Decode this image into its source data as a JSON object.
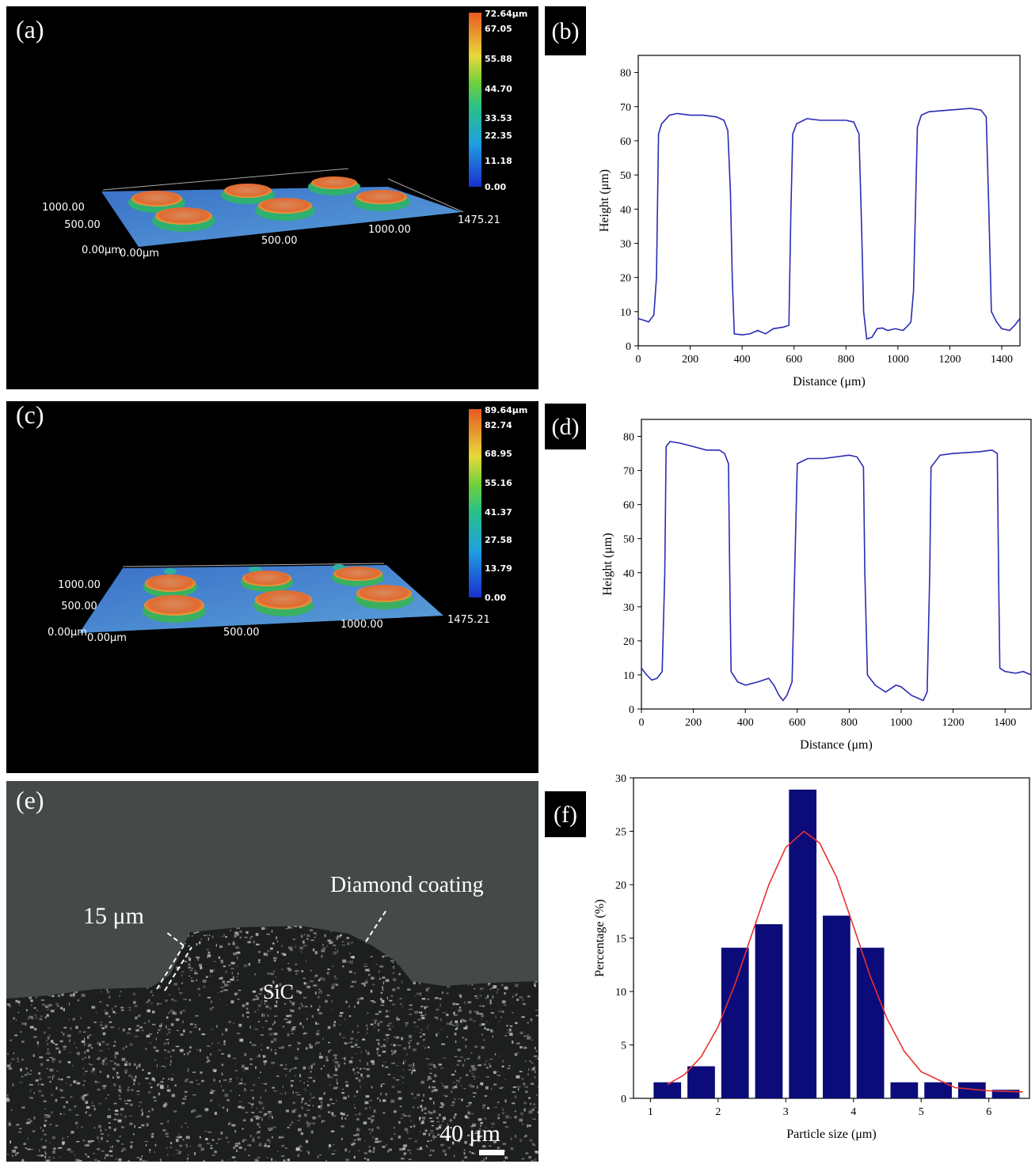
{
  "chart_data": [
    {
      "type": "line",
      "label": "(b)",
      "x_label": "Distance (μm)",
      "y_label": "Height (μm)",
      "x": [
        0,
        20,
        40,
        60,
        70,
        78,
        90,
        120,
        150,
        200,
        250,
        300,
        330,
        345,
        355,
        362,
        370,
        400,
        430,
        460,
        490,
        520,
        560,
        580,
        588,
        595,
        610,
        650,
        700,
        800,
        830,
        850,
        860,
        868,
        880,
        900,
        920,
        940,
        960,
        990,
        1020,
        1040,
        1050,
        1060,
        1075,
        1090,
        1120,
        1200,
        1280,
        1320,
        1340,
        1350,
        1360,
        1380,
        1400,
        1430,
        1450,
        1470
      ],
      "series": [
        {
          "color": "#2b2bb5",
          "values": [
            8,
            7.5,
            7,
            9,
            20,
            62,
            65,
            67.5,
            68,
            67.5,
            67.5,
            67,
            66,
            63,
            45,
            20,
            3.5,
            3.2,
            3.5,
            4.5,
            3.5,
            5,
            5.5,
            6,
            40,
            62,
            65,
            66.5,
            66,
            66,
            65.5,
            62,
            35,
            10,
            2,
            2.5,
            5,
            5.2,
            4.5,
            5,
            4.5,
            6,
            7,
            16,
            64,
            67.5,
            68.5,
            69,
            69.5,
            69,
            67,
            40,
            10,
            7,
            5,
            4.5,
            6,
            8
          ]
        }
      ],
      "xlim": [
        0,
        1470
      ],
      "ylim": [
        0,
        85
      ],
      "xticks": [
        0,
        200,
        400,
        600,
        800,
        1000,
        1200,
        1400
      ],
      "yticks": [
        0,
        10,
        20,
        30,
        40,
        50,
        60,
        70,
        80
      ]
    },
    {
      "type": "line",
      "label": "(d)",
      "x_label": "Distance (μm)",
      "y_label": "Height (μm)",
      "x": [
        0,
        20,
        40,
        60,
        80,
        90,
        95,
        110,
        150,
        200,
        250,
        300,
        320,
        335,
        340,
        345,
        370,
        400,
        450,
        490,
        510,
        530,
        545,
        560,
        580,
        590,
        600,
        640,
        700,
        800,
        830,
        855,
        860,
        870,
        900,
        940,
        980,
        1000,
        1040,
        1070,
        1085,
        1100,
        1110,
        1115,
        1150,
        1200,
        1300,
        1350,
        1370,
        1375,
        1380,
        1400,
        1440,
        1470,
        1500
      ],
      "series": [
        {
          "color": "#2b2bb5",
          "values": [
            12,
            10,
            8.5,
            9,
            11,
            40,
            77,
            78.5,
            78,
            77,
            76,
            76,
            75,
            72,
            40,
            11,
            8,
            7,
            8,
            9,
            7,
            4,
            2.5,
            4,
            8,
            40,
            72,
            73.5,
            73.5,
            74.5,
            74,
            71,
            40,
            10,
            7,
            5,
            7,
            6.5,
            4,
            3,
            2.5,
            5,
            40,
            71,
            74.5,
            75,
            75.5,
            76,
            75,
            40,
            12,
            11,
            10.5,
            11,
            10
          ]
        }
      ],
      "xlim": [
        0,
        1500
      ],
      "ylim": [
        0,
        85
      ],
      "xticks": [
        0,
        200,
        400,
        600,
        800,
        1000,
        1200,
        1400
      ],
      "yticks": [
        0,
        10,
        20,
        30,
        40,
        50,
        60,
        70,
        80
      ]
    },
    {
      "type": "histogram",
      "label": "(f)",
      "x_label": "Particle size (μm)",
      "y_label": "Percentage (%)",
      "bins": [
        1.0,
        1.5,
        2.0,
        2.5,
        3.0,
        3.5,
        4.0,
        4.5,
        5.0,
        5.5,
        6.0,
        6.5
      ],
      "values": [
        1.5,
        3,
        14.1,
        16.3,
        28.9,
        17.1,
        14.1,
        1.5,
        1.5,
        1.5,
        0.8
      ],
      "color": "#0b0b7a",
      "fit": {
        "color": "#e8312f",
        "x": [
          1.25,
          1.5,
          1.75,
          2.0,
          2.25,
          2.5,
          2.75,
          3.0,
          3.27,
          3.5,
          3.75,
          4.0,
          4.25,
          4.5,
          4.75,
          5.0,
          5.5,
          6.0,
          6.5
        ],
        "values": [
          1.3,
          2.2,
          3.9,
          6.7,
          10.7,
          15.4,
          20.0,
          23.5,
          25,
          23.9,
          20.7,
          16.1,
          11.4,
          7.4,
          4.4,
          2.5,
          1.0,
          0.7,
          0.6
        ]
      },
      "xlim": [
        0.75,
        6.6
      ],
      "ylim": [
        0,
        30
      ],
      "xticks": [
        1,
        2,
        3,
        4,
        5,
        6
      ],
      "yticks": [
        0,
        5,
        10,
        15,
        20,
        25,
        30
      ]
    }
  ],
  "images": [
    {
      "label": "(a)",
      "colorbar": [
        "72.64μm",
        "67.05",
        "55.88",
        "44.70",
        "33.53",
        "22.35",
        "11.18",
        "0.00"
      ],
      "axis_labels": [
        "1000.00",
        "500.00",
        "0.00μm",
        "0.00μm",
        "500.00",
        "1000.00",
        "1475.21"
      ]
    },
    {
      "label": "(c)",
      "colorbar": [
        "89.64μm",
        "82.74",
        "68.95",
        "55.16",
        "41.37",
        "27.58",
        "13.79",
        "0.00"
      ],
      "axis_labels": [
        "1000.00",
        "500.00",
        "0.00μm",
        "0.00μm",
        "500.00",
        "1000.00",
        "1475.21"
      ]
    },
    {
      "label": "(e)",
      "annotations": [
        "15 μm",
        "Diamond coating",
        "SiC",
        "40 μm"
      ]
    }
  ]
}
